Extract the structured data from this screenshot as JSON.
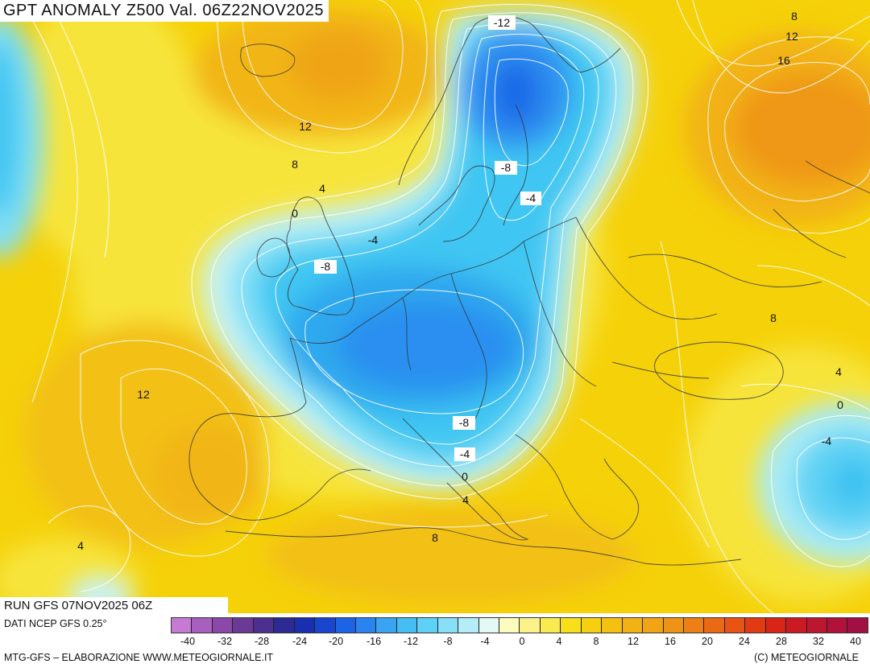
{
  "title": "GPT ANOMALY Z500 Val. 06Z22NOV2025",
  "run": "RUN GFS 07NOV2025 06Z",
  "dati": "DATI NCEP GFS 0.25°",
  "footer_left": "MTG-GFS – ELABORAZIONE WWW.METEOGIORNALE.IT",
  "footer_right": "(C) METEOGIORNALE",
  "contour_labels": [
    "-12",
    "8",
    "12",
    "16",
    "12",
    "8",
    "4",
    "0",
    "-8",
    "-4",
    "-4",
    "-8",
    "8",
    "4",
    "0",
    "-4",
    "12",
    "-8",
    "-4",
    "0",
    "4",
    "8",
    "4"
  ],
  "legend": {
    "tick_labels": [
      "-40",
      "-32",
      "-28",
      "-24",
      "-20",
      "-16",
      "-12",
      "-8",
      "-4",
      "0",
      "4",
      "8",
      "12",
      "16",
      "20",
      "24",
      "28",
      "32",
      "40"
    ],
    "colors": [
      "#c77ad4",
      "#a95fbe",
      "#8a49a8",
      "#6b3a97",
      "#4c2f8f",
      "#2d2a94",
      "#1a2fb0",
      "#1a46cf",
      "#1d63e6",
      "#2a84f0",
      "#3aa3f2",
      "#46bdf4",
      "#5fd1f6",
      "#86e0f7",
      "#b4edf8",
      "#e4f9f4",
      "#fdfcbf",
      "#fbf38a",
      "#f9ea52",
      "#f7df1a",
      "#f6cf10",
      "#f4c012",
      "#f2b214",
      "#f0a416",
      "#ee9316",
      "#ec7f15",
      "#ea6a14",
      "#e75413",
      "#e23b14",
      "#d92517",
      "#cc1a24",
      "#bd1630",
      "#b0123a",
      "#a20f45"
    ]
  }
}
